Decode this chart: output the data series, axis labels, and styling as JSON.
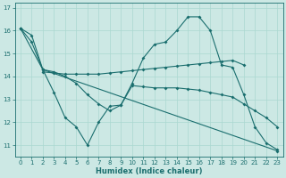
{
  "xlabel": "Humidex (Indice chaleur)",
  "bg_color": "#cce8e4",
  "line_color": "#1a6e6e",
  "grid_color": "#aad8d0",
  "xlim": [
    -0.5,
    23.5
  ],
  "ylim": [
    10.5,
    17.2
  ],
  "yticks": [
    11,
    12,
    13,
    14,
    15,
    16,
    17
  ],
  "xticks": [
    0,
    1,
    2,
    3,
    4,
    5,
    6,
    7,
    8,
    9,
    10,
    11,
    12,
    13,
    14,
    15,
    16,
    17,
    18,
    19,
    20,
    21,
    22,
    23
  ],
  "line1_x": [
    2,
    3,
    4,
    5,
    6,
    7,
    8,
    9,
    10,
    11,
    12,
    13,
    14,
    15,
    16,
    17,
    18,
    19,
    20
  ],
  "line1_y": [
    14.2,
    14.15,
    14.1,
    14.1,
    14.1,
    14.1,
    14.15,
    14.2,
    14.25,
    14.3,
    14.35,
    14.4,
    14.45,
    14.5,
    14.55,
    14.6,
    14.65,
    14.7,
    14.5
  ],
  "line2_x": [
    0,
    1,
    2,
    3,
    4,
    5,
    6,
    7,
    8,
    9,
    10,
    11,
    12,
    13,
    14,
    15,
    16,
    17,
    18,
    19,
    20,
    21,
    22,
    23
  ],
  "line2_y": [
    16.1,
    15.8,
    14.3,
    13.3,
    12.2,
    11.8,
    11.0,
    12.0,
    12.7,
    12.75,
    13.7,
    14.8,
    15.4,
    15.5,
    16.0,
    16.6,
    16.6,
    16.0,
    14.5,
    14.4,
    13.2,
    11.8,
    11.1,
    10.8
  ],
  "line3_x": [
    0,
    1,
    2,
    3,
    4,
    5,
    6,
    7,
    8,
    9,
    10,
    11,
    12,
    13,
    14,
    15,
    16,
    17,
    18,
    19,
    20,
    21,
    22,
    23
  ],
  "line3_y": [
    16.1,
    15.5,
    14.3,
    14.2,
    14.0,
    13.7,
    13.2,
    12.8,
    12.5,
    12.75,
    13.6,
    13.55,
    13.5,
    13.5,
    13.5,
    13.45,
    13.4,
    13.3,
    13.2,
    13.1,
    12.8,
    12.5,
    12.2,
    11.8
  ],
  "line4_x": [
    0,
    2,
    23
  ],
  "line4_y": [
    16.1,
    14.3,
    10.75
  ]
}
